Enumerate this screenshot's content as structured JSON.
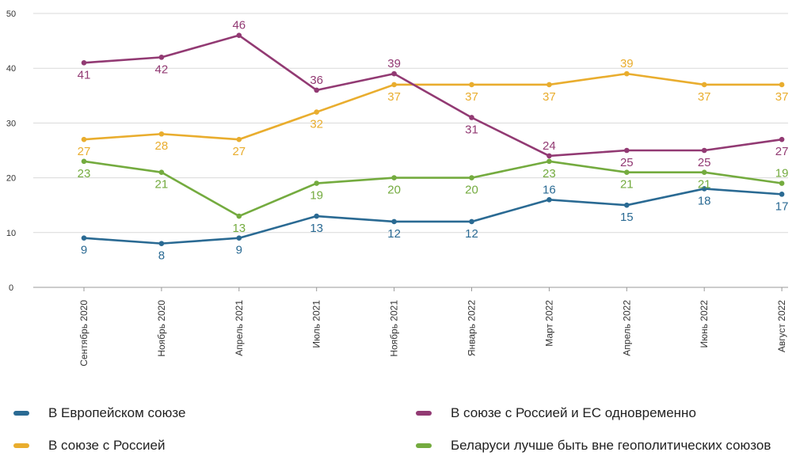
{
  "chart_data": {
    "type": "line",
    "categories": [
      "Сентябрь 2020",
      "Ноябрь 2020",
      "Апрель 2021",
      "Июль 2021",
      "Ноябрь 2021",
      "Январь 2022",
      "Март 2022",
      "Апрель 2022",
      "Июнь 2022",
      "Август 2022"
    ],
    "yticks": [
      0,
      10,
      20,
      30,
      40,
      50
    ],
    "ylim": [
      0,
      50
    ],
    "grid": true,
    "legend_position": "bottom",
    "series": [
      {
        "name": "В Европейском союзе",
        "color": "#2a6a93",
        "values": [
          9,
          8,
          9,
          13,
          12,
          12,
          16,
          15,
          18,
          17
        ]
      },
      {
        "name": "В союзе с Россией",
        "color": "#e9ad2e",
        "values": [
          27,
          28,
          27,
          32,
          37,
          37,
          37,
          39,
          37,
          37
        ]
      },
      {
        "name": "В союзе с Россией и ЕС одновременно",
        "color": "#923a73",
        "values": [
          41,
          42,
          46,
          36,
          39,
          31,
          24,
          25,
          25,
          27
        ]
      },
      {
        "name": "Беларуси лучше быть вне геополитических союзов",
        "color": "#74ab3f",
        "values": [
          23,
          21,
          13,
          19,
          20,
          20,
          23,
          21,
          21,
          19
        ]
      }
    ]
  }
}
